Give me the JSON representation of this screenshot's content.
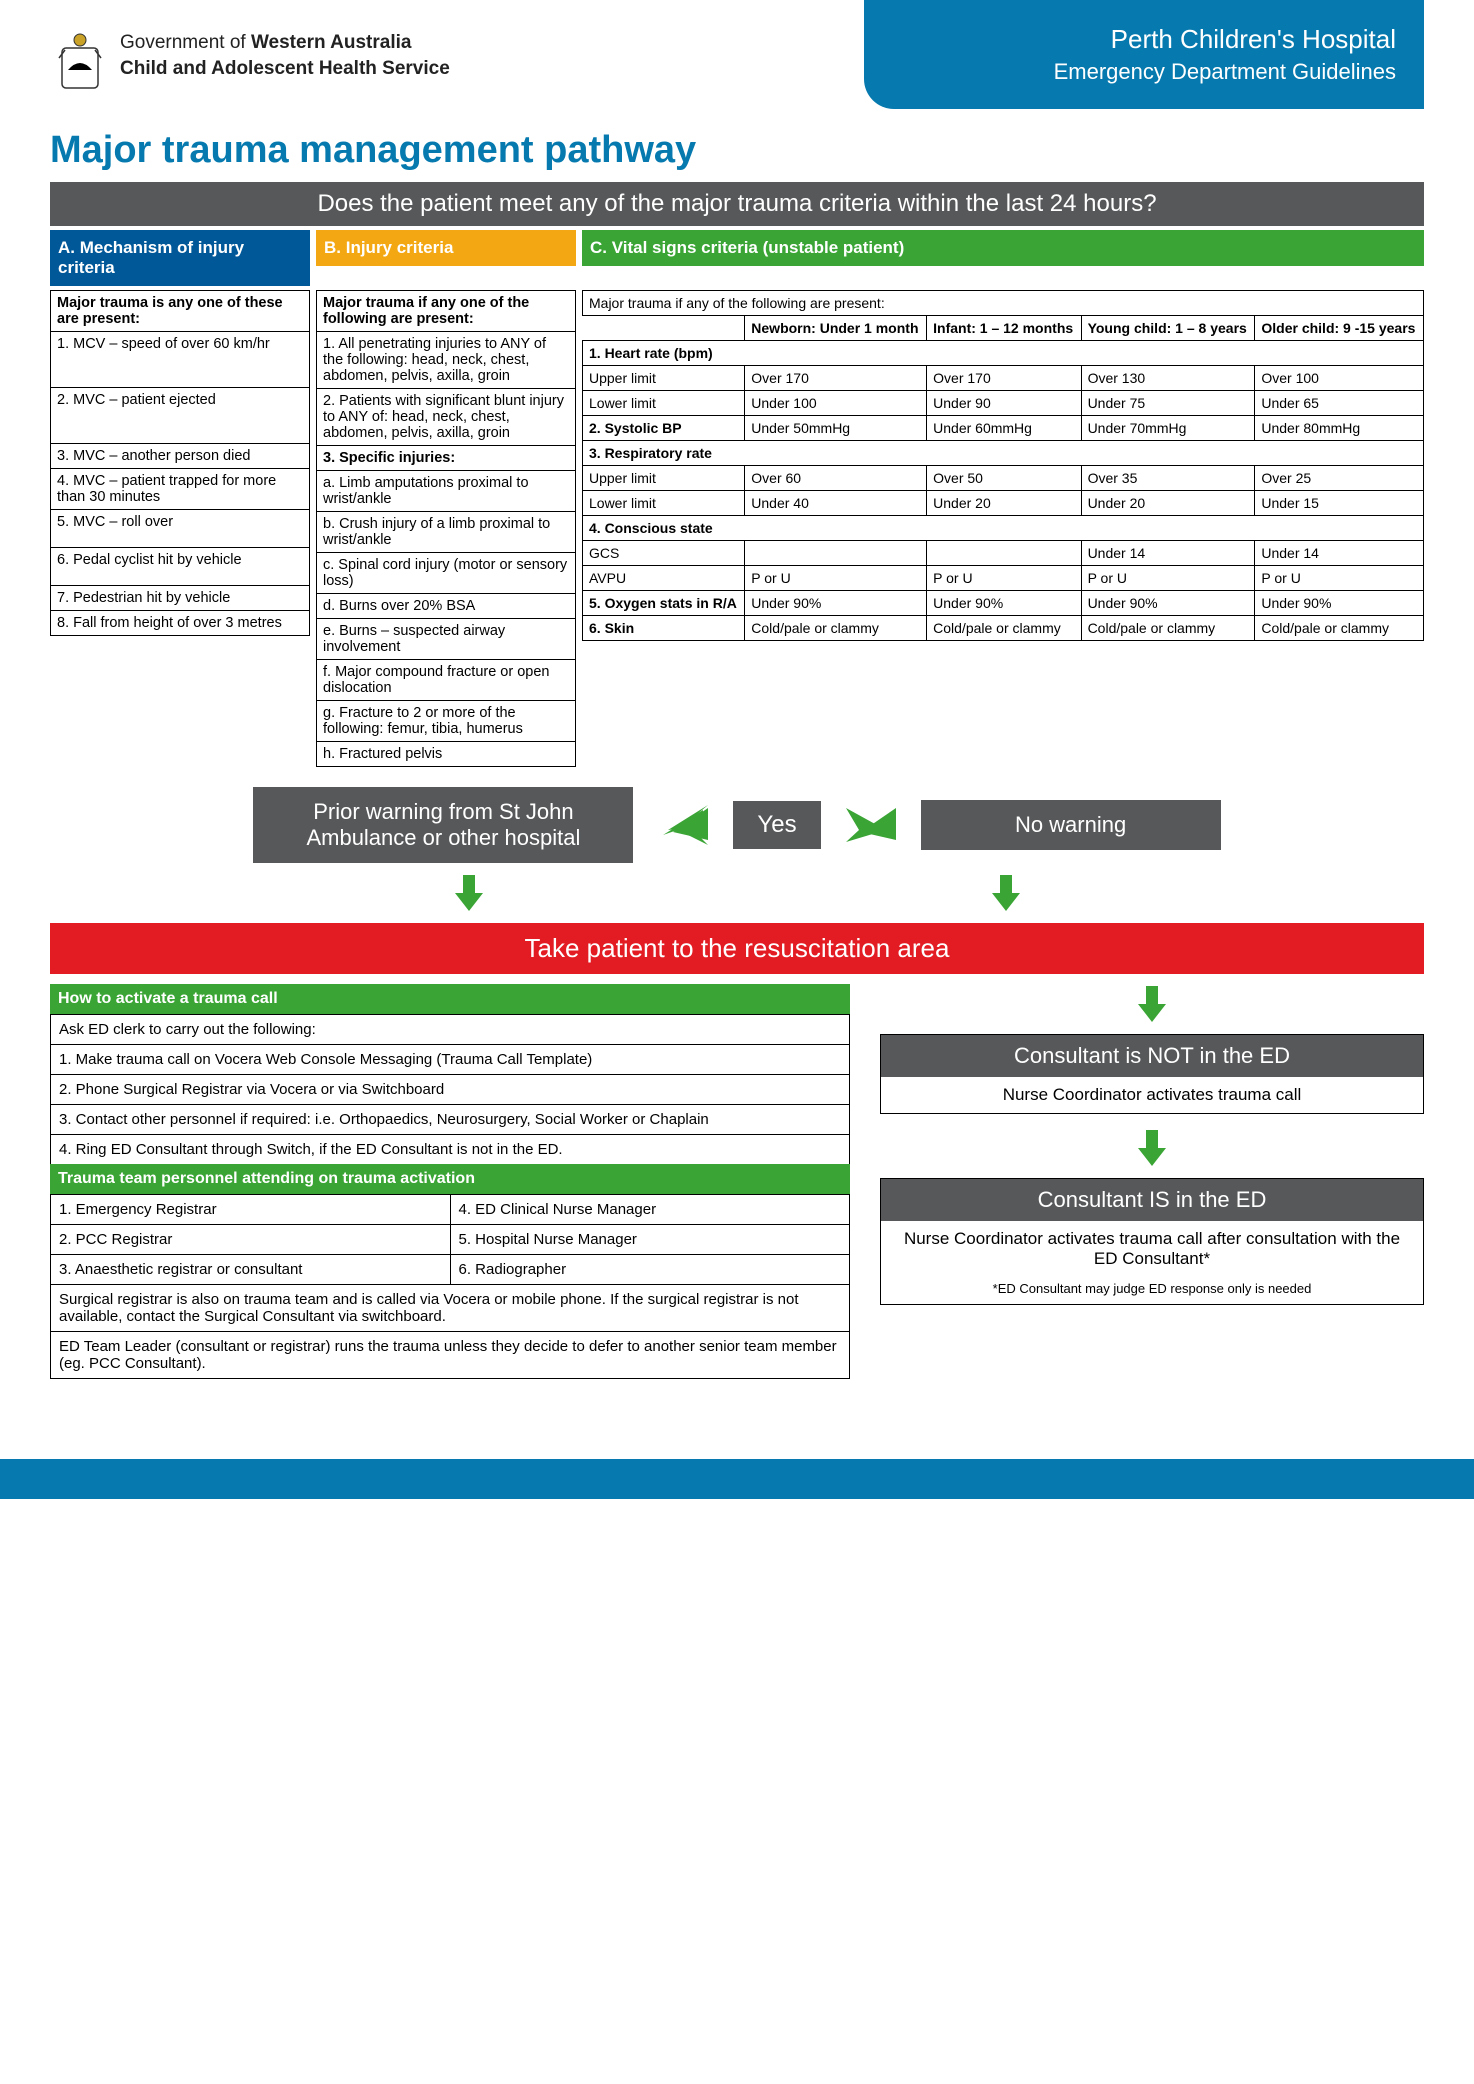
{
  "header": {
    "gov_line1_pre": "Government of ",
    "gov_line1_bold": "Western Australia",
    "gov_line2_bold": "Child and Adolescent Health Service",
    "banner_title": "Perth Children's Hospital",
    "banner_sub": "Emergency Department Guidelines"
  },
  "title": "Major trauma management pathway",
  "question": "Does the patient meet any of the major trauma criteria within the last 24 hours?",
  "colA": {
    "header": "A. Mechanism of injury criteria",
    "lead": "Major trauma is any one of these are present:",
    "items": [
      "1. MCV – speed of over 60 km/hr",
      "2. MVC – patient ejected",
      "3. MVC – another person died",
      "4. MVC – patient trapped for more than 30 minutes",
      "5. MVC – roll over",
      "6. Pedal cyclist hit by vehicle",
      "7. Pedestrian hit by vehicle",
      "8. Fall from height of over 3 metres"
    ]
  },
  "colB": {
    "header": "B. Injury criteria",
    "lead": "Major trauma if any one of the following are present:",
    "items": [
      "1. All penetrating injuries to ANY of the following: head, neck, chest, abdomen, pelvis, axilla, groin",
      "2. Patients with significant blunt injury to ANY of: head, neck, chest, abdomen, pelvis, axilla, groin",
      "3. Specific injuries:",
      "a. Limb amputations proximal to wrist/ankle",
      "b. Crush injury of a limb proximal to wrist/ankle",
      "c. Spinal cord injury (motor or sensory loss)",
      "d. Burns over 20% BSA",
      "e. Burns – suspected airway involvement",
      "f. Major compound fracture or open dislocation",
      "g. Fracture to 2 or more of the following: femur, tibia, humerus",
      "h. Fractured pelvis"
    ]
  },
  "colC": {
    "header": "C. Vital signs criteria (unstable patient)",
    "lead": "Major trauma if any of the following are present:",
    "ages": [
      "Newborn: Under 1 month",
      "Infant: 1 – 12 months",
      "Young child: 1 – 8 years",
      "Older child: 9 -15 years"
    ],
    "rows": [
      {
        "label": "1. Heart rate (bpm)",
        "span": true
      },
      {
        "label": "Upper limit",
        "vals": [
          "Over 170",
          "Over 170",
          "Over 130",
          "Over 100"
        ]
      },
      {
        "label": "Lower limit",
        "vals": [
          "Under 100",
          "Under 90",
          "Under 75",
          "Under 65"
        ]
      },
      {
        "label": "2. Systolic BP",
        "vals": [
          "Under 50mmHg",
          "Under 60mmHg",
          "Under 70mmHg",
          "Under 80mmHg"
        ]
      },
      {
        "label": "3. Respiratory rate",
        "span": true
      },
      {
        "label": "Upper limit",
        "vals": [
          "Over 60",
          "Over 50",
          "Over 35",
          "Over 25"
        ]
      },
      {
        "label": "Lower limit",
        "vals": [
          "Under 40",
          "Under 20",
          "Under 20",
          "Under 15"
        ]
      },
      {
        "label": "4. Conscious state",
        "span": true
      },
      {
        "label": "GCS",
        "vals": [
          "",
          "",
          "Under 14",
          "Under 14"
        ]
      },
      {
        "label": "AVPU",
        "vals": [
          "P or U",
          "P or U",
          "P or U",
          "P or U"
        ]
      },
      {
        "label": "5. Oxygen stats in R/A",
        "vals": [
          "Under 90%",
          "Under 90%",
          "Under 90%",
          "Under 90%"
        ]
      },
      {
        "label": "6. Skin",
        "vals": [
          "Cold/pale or clammy",
          "Cold/pale or clammy",
          "Cold/pale or clammy",
          "Cold/pale or clammy"
        ]
      }
    ]
  },
  "flow": {
    "yes": "Yes",
    "prior": "Prior warning from St John Ambulance or other hospital",
    "nowarn": "No warning",
    "resus": "Take patient to the resuscitation area"
  },
  "activate": {
    "header": "How to activate a trauma call",
    "intro": "Ask ED clerk to carry out the following:",
    "steps": [
      "1. Make trauma call on Vocera Web Console Messaging (Trauma Call Template)",
      "2. Phone Surgical Registrar via Vocera or via Switchboard",
      "3. Contact other personnel if required: i.e. Orthopaedics, Neurosurgery, Social Worker or Chaplain",
      "4. Ring ED Consultant through Switch, if the ED Consultant is not in the ED."
    ],
    "team_header": "Trauma team personnel attending on trauma activation",
    "team_left": [
      "1. Emergency Registrar",
      "2. PCC Registrar",
      "3. Anaesthetic registrar or consultant"
    ],
    "team_right": [
      "4. ED Clinical Nurse Manager",
      "5. Hospital Nurse Manager",
      "6. Radiographer"
    ],
    "note1": "Surgical registrar is also on trauma team and is called via Vocera or mobile phone. If the surgical registrar is not available, contact the Surgical Consultant via switchboard.",
    "note2": "ED Team Leader (consultant or registrar) runs the trauma unless they decide to defer to another senior team member (eg. PCC Consultant)."
  },
  "consultant": {
    "not_hdr": "Consultant is NOT in the ED",
    "not_body": "Nurse Coordinator activates trauma call",
    "is_hdr": "Consultant IS in the ED",
    "is_body": "Nurse Coordinator activates trauma call after consultation with the ED Consultant*",
    "foot": "*ED Consultant may judge ED response only is needed"
  },
  "colors": {
    "blue": "#0679ae",
    "darkblue": "#005899",
    "orange": "#f3a712",
    "green": "#3aa535",
    "grey": "#57585a",
    "red": "#e31b23"
  }
}
